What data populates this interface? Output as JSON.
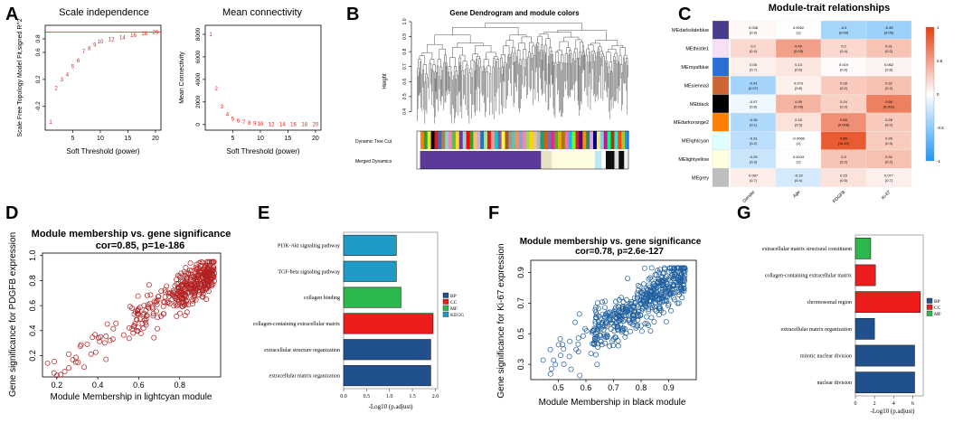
{
  "panel_labels": [
    "A",
    "B",
    "C",
    "D",
    "E",
    "F",
    "G"
  ],
  "colors": {
    "sft_red": "#e41a1c",
    "scatter_red": "#b22222",
    "scatter_blue": "#1f5f9f",
    "bp": "#21508f",
    "cc": "#ef1c1c",
    "mf": "#2db84d",
    "kegg": "#1f9bc6",
    "heat_low": "#2196f3",
    "heat_high": "#e53e0e"
  },
  "chart_data": [
    {
      "id": "A1",
      "type": "scatter",
      "title": "Scale independence",
      "xlabel": "Soft Threshold (power)",
      "ylabel": "Scale Free Topology Model Fit,signed R^2",
      "xlim": [
        0,
        21
      ],
      "ylim": [
        -0.55,
        1.0
      ],
      "xticks": [
        5,
        10,
        15,
        20
      ],
      "yticks": [
        -0.2,
        0.2,
        0.6,
        0.8
      ],
      "yticklabels": [
        "-0.2",
        "0.2",
        "0.6",
        "0.8"
      ],
      "hline": 0.9,
      "points": [
        {
          "x": 1,
          "y": -0.43,
          "label": "1"
        },
        {
          "x": 2,
          "y": 0.07,
          "label": "2"
        },
        {
          "x": 3,
          "y": 0.2,
          "label": "3"
        },
        {
          "x": 4,
          "y": 0.27,
          "label": "4"
        },
        {
          "x": 5,
          "y": 0.39,
          "label": "5"
        },
        {
          "x": 6,
          "y": 0.48,
          "label": "6"
        },
        {
          "x": 7,
          "y": 0.61,
          "label": "7"
        },
        {
          "x": 8,
          "y": 0.66,
          "label": "8"
        },
        {
          "x": 9,
          "y": 0.71,
          "label": "9"
        },
        {
          "x": 10,
          "y": 0.76,
          "label": "10"
        },
        {
          "x": 12,
          "y": 0.79,
          "label": "12"
        },
        {
          "x": 14,
          "y": 0.82,
          "label": "14"
        },
        {
          "x": 16,
          "y": 0.85,
          "label": "16"
        },
        {
          "x": 18,
          "y": 0.88,
          "label": "18"
        },
        {
          "x": 20,
          "y": 0.9,
          "label": "20"
        }
      ]
    },
    {
      "id": "A2",
      "type": "scatter",
      "title": "Mean connectivity",
      "xlabel": "Soft Threshold (power)",
      "ylabel": "Mean Connectivity",
      "xlim": [
        0,
        21
      ],
      "ylim": [
        -500,
        8800
      ],
      "xticks": [
        5,
        10,
        15,
        20
      ],
      "yticks": [
        0,
        2000,
        4000,
        6000,
        8000
      ],
      "points": [
        {
          "x": 1,
          "y": 8000,
          "label": "1"
        },
        {
          "x": 2,
          "y": 3200,
          "label": "2"
        },
        {
          "x": 3,
          "y": 1600,
          "label": "3"
        },
        {
          "x": 4,
          "y": 900,
          "label": "4"
        },
        {
          "x": 5,
          "y": 520,
          "label": "5"
        },
        {
          "x": 6,
          "y": 330,
          "label": "6"
        },
        {
          "x": 7,
          "y": 210,
          "label": "7"
        },
        {
          "x": 8,
          "y": 140,
          "label": "8"
        },
        {
          "x": 9,
          "y": 100,
          "label": "9"
        },
        {
          "x": 10,
          "y": 70,
          "label": "10"
        },
        {
          "x": 12,
          "y": 40,
          "label": "12"
        },
        {
          "x": 14,
          "y": 25,
          "label": "14"
        },
        {
          "x": 16,
          "y": 15,
          "label": "16"
        },
        {
          "x": 18,
          "y": 10,
          "label": "18"
        },
        {
          "x": 20,
          "y": 7,
          "label": "20"
        }
      ]
    },
    {
      "id": "B",
      "type": "other",
      "title": "Gene Dendrogram and module colors",
      "ylabel": "Height",
      "ylim": [
        0.3,
        1.0
      ],
      "yticks": [
        0.4,
        0.5,
        0.6,
        0.7,
        0.8,
        0.9,
        1.0
      ],
      "row_labels": [
        "Dynamic Tree Cut",
        "Merged Dynamics"
      ],
      "merged_modules": [
        {
          "color": "#ffffff",
          "w": 3
        },
        {
          "color": "#5b3a99",
          "w": 112
        },
        {
          "color": "#e9e0c8",
          "w": 10
        },
        {
          "color": "#fffde0",
          "w": 40
        },
        {
          "color": "#bfe6f5",
          "w": 6
        },
        {
          "color": "#ffffff",
          "w": 4
        },
        {
          "color": "#0e0e0e",
          "w": 8
        },
        {
          "color": "#dddddd",
          "w": 4
        },
        {
          "color": "#0e0e0e",
          "w": 5
        },
        {
          "color": "#f0f0f0",
          "w": 4
        }
      ],
      "dynamic_colors": [
        "#ffffff",
        "#ff7f00",
        "#1fa33a",
        "#f7e400",
        "#000000",
        "#e41a1c",
        "#2a6fd6",
        "#b67d3e",
        "#8dd3c7",
        "#f781bf",
        "#5fb946",
        "#ffd92f",
        "#6a3d9a",
        "#a6cee3",
        "#ff0000",
        "#33a02c",
        "#fdbf6f",
        "#cab2d6",
        "#1f78b4",
        "#b2df8a",
        "#e31a1c",
        "#fb9a99",
        "#00ced1",
        "#984ea3",
        "#ffff33",
        "#a65628",
        "#999999",
        "#66c2a5",
        "#fc8d62",
        "#8da0cb",
        "#e78ac3",
        "#a6d854",
        "#ffd700",
        "#e5c494",
        "#b3b3b3",
        "#1b9e77",
        "#d95f02",
        "#7570b3",
        "#e7298a",
        "#66a61e",
        "#e6ab02",
        "#a6761d",
        "#ff69b4",
        "#00bfff",
        "#7cfc00",
        "#dc143c",
        "#4b0082",
        "#ff8c00",
        "#2e8b57",
        "#dda0dd",
        "#000080",
        "#f0e68c",
        "#87ceeb",
        "#c71585",
        "#00ff7f",
        "#8b4513",
        "#40e0d0",
        "#ff4500",
        "#9acd32",
        "#1e90ff"
      ]
    },
    {
      "id": "C",
      "type": "heatmap",
      "title": "Module-trait relationships",
      "rows": [
        "MEdarkslateblue",
        "MEthistle1",
        "MEroyalblue",
        "MEsienna3",
        "MEblack",
        "MEdarkorange2",
        "MElightcyan",
        "MElightyellow",
        "MEgrey"
      ],
      "row_colors": [
        "#483d8b",
        "#f7e0f5",
        "#2a6fd6",
        "#cc6633",
        "#000000",
        "#ff7f00",
        "#e0ffff",
        "#ffffe0",
        "#bebebe"
      ],
      "cols": [
        "Gender",
        "Age",
        "PDGFB",
        "Ki-67"
      ],
      "values": [
        [
          0.038,
          0.0062,
          -0.4,
          -0.45
        ],
        [
          0.2,
          0.49,
          0.2,
          0.31
        ],
        [
          0.08,
          0.13,
          0.019,
          0.062
        ],
        [
          -0.41,
          0.073,
          0.28,
          0.32
        ],
        [
          -0.07,
          0.39,
          0.24,
          0.66
        ],
        [
          -0.36,
          0.15,
          0.58,
          0.28
        ],
        [
          -0.31,
          -0.0068,
          0.85,
          0.26
        ],
        [
          -0.25,
          0.0043,
          0.3,
          0.32
        ],
        [
          0.087,
          -0.19,
          0.15,
          0.077
        ]
      ],
      "pvalues": [
        [
          "(0.9)",
          "(1)",
          "(0.09)",
          "(0.05)"
        ],
        [
          "(0.4)",
          "(0.03)",
          "(0.4)",
          "(0.2)"
        ],
        [
          "(0.7)",
          "(0.6)",
          "(0.9)",
          "(0.8)"
        ],
        [
          "(0.07)",
          "(0.8)",
          "(0.2)",
          "(0.2)"
        ],
        [
          "(0.8)",
          "(0.09)",
          "(0.3)",
          "(0.001)"
        ],
        [
          "(0.1)",
          "(0.5)",
          "(0.008)",
          "(0.2)"
        ],
        [
          "(0.2)",
          "(1)",
          "(1e-11)",
          "(0.3)"
        ],
        [
          "(0.3)",
          "(1)",
          "(0.2)",
          "(0.2)"
        ],
        [
          "(0.7)",
          "(0.4)",
          "(0.5)",
          "(0.7)"
        ]
      ],
      "value_labels": [
        [
          "0.038",
          "0.0062",
          "-0.4",
          "-0.45"
        ],
        [
          "0.2",
          "0.49",
          "0.2",
          "0.31"
        ],
        [
          "0.08",
          "0.13",
          "0.019",
          "0.062"
        ],
        [
          "-0.41",
          "0.073",
          "0.28",
          "0.32"
        ],
        [
          "-0.07",
          "0.39",
          "0.24",
          "0.66"
        ],
        [
          "-0.36",
          "0.15",
          "0.58",
          "0.28"
        ],
        [
          "-0.31",
          "-0.0068",
          "0.85",
          "0.26"
        ],
        [
          "-0.25",
          "0.0043",
          "0.3",
          "0.32"
        ],
        [
          "0.087",
          "-0.19",
          "0.15",
          "0.077"
        ]
      ],
      "colorbar": {
        "ticks": [
          1,
          0.5,
          0,
          -0.5,
          -1
        ],
        "labels": [
          "1",
          "0.5",
          "0",
          "-0.5",
          "-1"
        ]
      }
    },
    {
      "id": "D",
      "type": "scatter",
      "title": "Module membership vs. gene significance",
      "subtitle": "cor=0.85, p=1e-186",
      "xlabel": "Module Membership in lightcyan module",
      "ylabel": "Gene significance for PDGFB expression",
      "xlim": [
        0.13,
        1.0
      ],
      "ylim": [
        0.03,
        1.02
      ],
      "xticks": [
        0.2,
        0.4,
        0.6,
        0.8
      ],
      "yticks": [
        0.2,
        0.4,
        0.6,
        0.8,
        1.0
      ],
      "point_count": 420,
      "correlation": 0.85
    },
    {
      "id": "E",
      "type": "bar",
      "orientation": "horizontal",
      "categories": [
        "PI3K-Akt signaling pathway",
        "TGF-beta signaling pathway",
        "collagen binding",
        "collagen-containing extracellular matrix",
        "extracellular structure organization",
        "extracellular matrix organization"
      ],
      "values": [
        1.15,
        1.15,
        1.25,
        1.95,
        1.9,
        1.9
      ],
      "groups": [
        "KEGG",
        "KEGG",
        "MF",
        "CC",
        "BP",
        "BP"
      ],
      "xlabel": "-Log10 (p.adjust)",
      "xlim": [
        0,
        2.05
      ],
      "xticks": [
        0.0,
        0.5,
        1.0,
        1.5,
        2.0
      ],
      "xticklabels": [
        "0.0",
        "0.5",
        "1.0",
        "1.5",
        "2.0"
      ],
      "legend": [
        "BP",
        "CC",
        "MF",
        "KEGG"
      ]
    },
    {
      "id": "F",
      "type": "scatter",
      "title": "Module membership vs. gene significance",
      "subtitle": "cor=0.78, p=2.6e-127",
      "xlabel": "Module Membership in black module",
      "ylabel": "Gene significance for Ki-67 expression",
      "xlim": [
        0.4,
        1.0
      ],
      "ylim": [
        0.2,
        0.98
      ],
      "xticks": [
        0.5,
        0.6,
        0.7,
        0.8,
        0.9
      ],
      "yticks": [
        0.3,
        0.5,
        0.7,
        0.9
      ],
      "point_count": 520,
      "correlation": 0.78
    },
    {
      "id": "G",
      "type": "bar",
      "orientation": "horizontal",
      "categories": [
        "extracellular matrix structural constituent",
        "collagen-containing extracellular matrix",
        "chromosomal region",
        "extracellular matrix organization",
        "mitotic nuclear division",
        "nuclear division"
      ],
      "values": [
        1.6,
        2.1,
        6.8,
        2.0,
        6.2,
        6.2
      ],
      "groups": [
        "MF",
        "CC",
        "CC",
        "BP",
        "BP",
        "BP"
      ],
      "xlabel": "-Log10 (p.adjust)",
      "xlim": [
        0,
        7.1
      ],
      "xticks": [
        0,
        2,
        4,
        6
      ],
      "legend": [
        "BP",
        "CC",
        "MF"
      ]
    }
  ]
}
